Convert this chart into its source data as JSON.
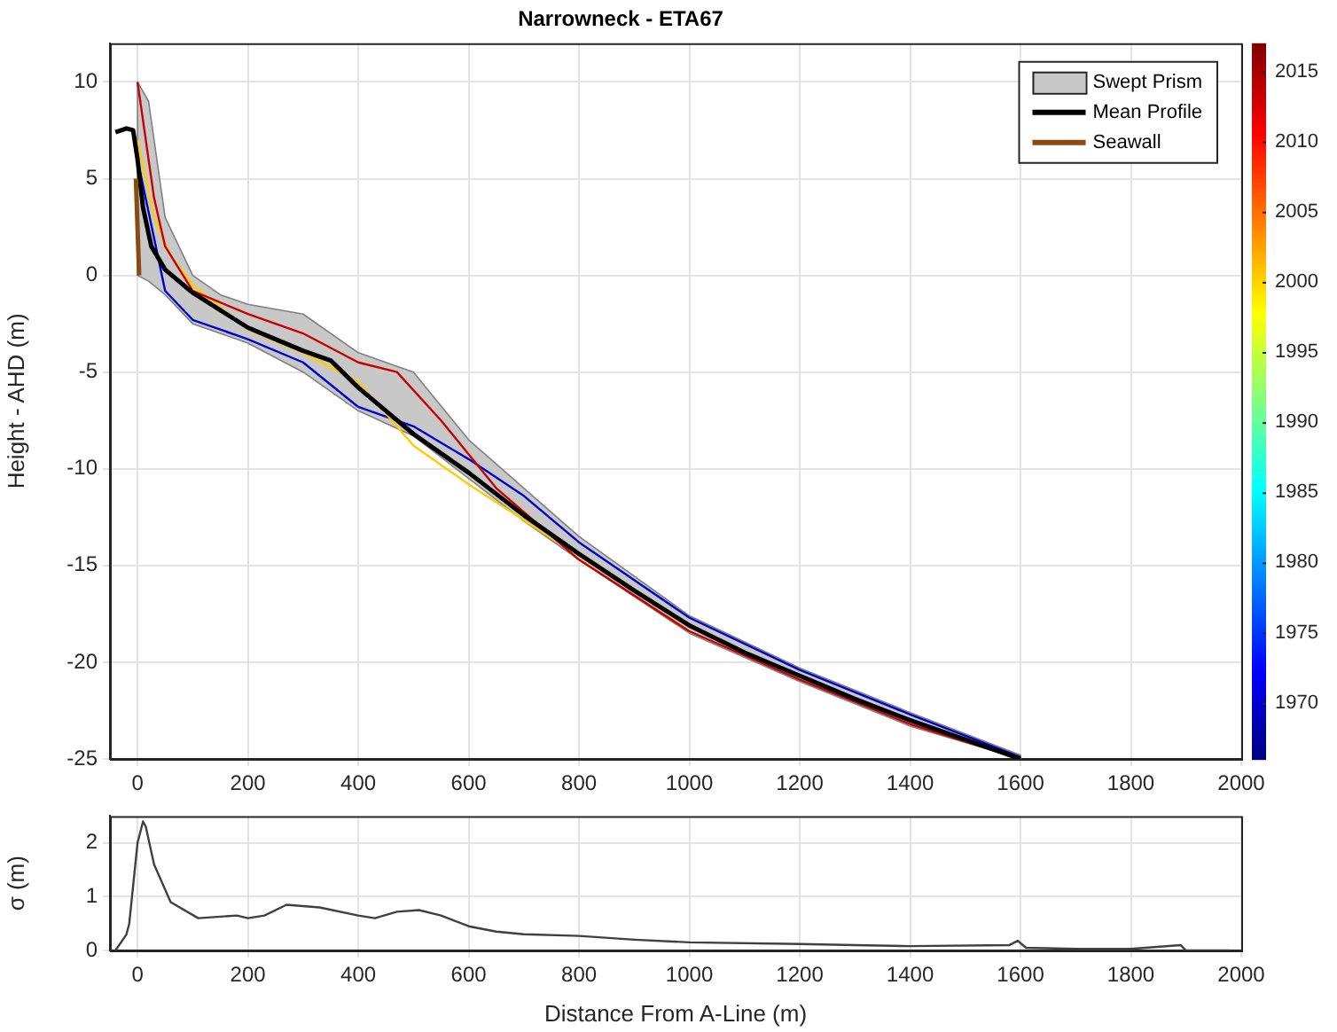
{
  "chart_data": [
    {
      "type": "line",
      "title": "Narrowneck - ETA67",
      "ylabel": "Height - AHD (m)",
      "xlim": [
        -50,
        2000
      ],
      "xticks": [
        0,
        200,
        400,
        600,
        800,
        1000,
        1200,
        1400,
        1600,
        1800,
        2000
      ],
      "ylim": [
        -25,
        12
      ],
      "yticks": [
        -25,
        -20,
        -15,
        -10,
        -5,
        0,
        5,
        10
      ],
      "grid": true,
      "legend": "top right",
      "clim": [
        1966,
        2017
      ],
      "cticks": [
        1970,
        1975,
        1980,
        1985,
        1990,
        1995,
        2000,
        2005,
        2010,
        2015
      ],
      "series": [
        {
          "name": "Swept Prism",
          "type": "area",
          "color": "#c8c8c8",
          "x": [
            0,
            20,
            50,
            100,
            150,
            200,
            300,
            400,
            500,
            600,
            700,
            800,
            1000,
            1200,
            1400,
            1600
          ],
          "values": [
            null,
            null,
            null,
            null,
            null,
            null,
            null,
            null,
            null,
            null,
            null,
            null,
            null,
            null,
            null,
            null
          ],
          "upper": [
            10,
            9,
            3,
            0,
            -1,
            -1.5,
            -2,
            -4,
            -5,
            -8.5,
            -11,
            -13.5,
            -17.6,
            -20.3,
            -22.6,
            -24.8
          ],
          "lower": [
            0,
            -0.3,
            -1,
            -2.5,
            -3,
            -3.5,
            -5,
            -7,
            -8.3,
            -10.5,
            -12.7,
            -14.7,
            -18.5,
            -21,
            -23.3,
            -25
          ]
        },
        {
          "type": "line",
          "color": "#0000cc",
          "x": [
            0,
            50,
            100,
            200,
            300,
            400,
            500,
            600,
            700,
            800,
            1000,
            1200,
            1400,
            1600
          ],
          "values": [
            6,
            -0.8,
            -2.3,
            -3.3,
            -4.5,
            -6.8,
            -7.8,
            -9.5,
            -11.4,
            -13.8,
            -17.7,
            -20.4,
            -22.7,
            -24.9
          ]
        },
        {
          "type": "line",
          "color": "#ffcc00",
          "x": [
            0,
            30,
            60,
            100,
            200,
            300,
            400,
            500,
            600,
            800,
            1000
          ],
          "values": [
            7,
            3,
            1,
            -0.5,
            -2.8,
            -4,
            -5.5,
            -8.8,
            -10.8,
            -14.5,
            -18.2
          ]
        },
        {
          "type": "line",
          "color": "#c80000",
          "x": [
            0,
            10,
            30,
            50,
            100,
            200,
            300,
            400,
            470,
            550,
            650,
            800,
            1000,
            1200,
            1400,
            1600
          ],
          "values": [
            10,
            8,
            4,
            1.5,
            -0.8,
            -2,
            -3,
            -4.5,
            -5,
            -7.5,
            -11,
            -14.7,
            -18.4,
            -20.9,
            -23.2,
            -25
          ]
        },
        {
          "name": "Mean Profile",
          "type": "line",
          "color": "#000000",
          "x": [
            -40,
            -20,
            -8,
            0,
            10,
            25,
            50,
            100,
            150,
            200,
            250,
            300,
            350,
            400,
            450,
            500,
            600,
            700,
            800,
            900,
            1000,
            1100,
            1200,
            1300,
            1400,
            1500,
            1600
          ],
          "values": [
            7.4,
            7.6,
            7.5,
            6,
            3.5,
            1.5,
            0.3,
            -0.9,
            -1.8,
            -2.7,
            -3.3,
            -3.9,
            -4.4,
            -5.8,
            -7,
            -8.2,
            -10.2,
            -12.4,
            -14.4,
            -16.3,
            -18.1,
            -19.5,
            -20.7,
            -21.9,
            -23,
            -24,
            -25
          ]
        },
        {
          "name": "Seawall",
          "type": "line",
          "color": "#8b4a0f",
          "x": [
            -3,
            3
          ],
          "values": [
            5,
            0
          ]
        }
      ]
    },
    {
      "type": "line",
      "xlabel": "Distance From A-Line (m)",
      "ylabel": "σ (m)",
      "xlim": [
        -50,
        2000
      ],
      "xticks": [
        0,
        200,
        400,
        600,
        800,
        1000,
        1200,
        1400,
        1600,
        1800,
        2000
      ],
      "ylim": [
        0,
        2.5
      ],
      "yticks": [
        0,
        1,
        2
      ],
      "grid": true,
      "color": "#404040",
      "x": [
        -40,
        -20,
        -15,
        -10,
        0,
        10,
        15,
        30,
        60,
        110,
        180,
        200,
        230,
        270,
        330,
        400,
        430,
        470,
        510,
        550,
        600,
        650,
        700,
        800,
        900,
        1000,
        1200,
        1300,
        1400,
        1580,
        1595,
        1610,
        1700,
        1800,
        1890,
        1900,
        1980
      ],
      "values": [
        0,
        0.3,
        0.5,
        1,
        2,
        2.4,
        2.3,
        1.6,
        0.9,
        0.6,
        0.65,
        0.6,
        0.65,
        0.85,
        0.8,
        0.65,
        0.6,
        0.72,
        0.75,
        0.65,
        0.45,
        0.35,
        0.3,
        0.27,
        0.2,
        0.15,
        0.12,
        0.1,
        0.08,
        0.1,
        0.18,
        0.05,
        0.03,
        0.03,
        0.1,
        0,
        0
      ]
    }
  ]
}
